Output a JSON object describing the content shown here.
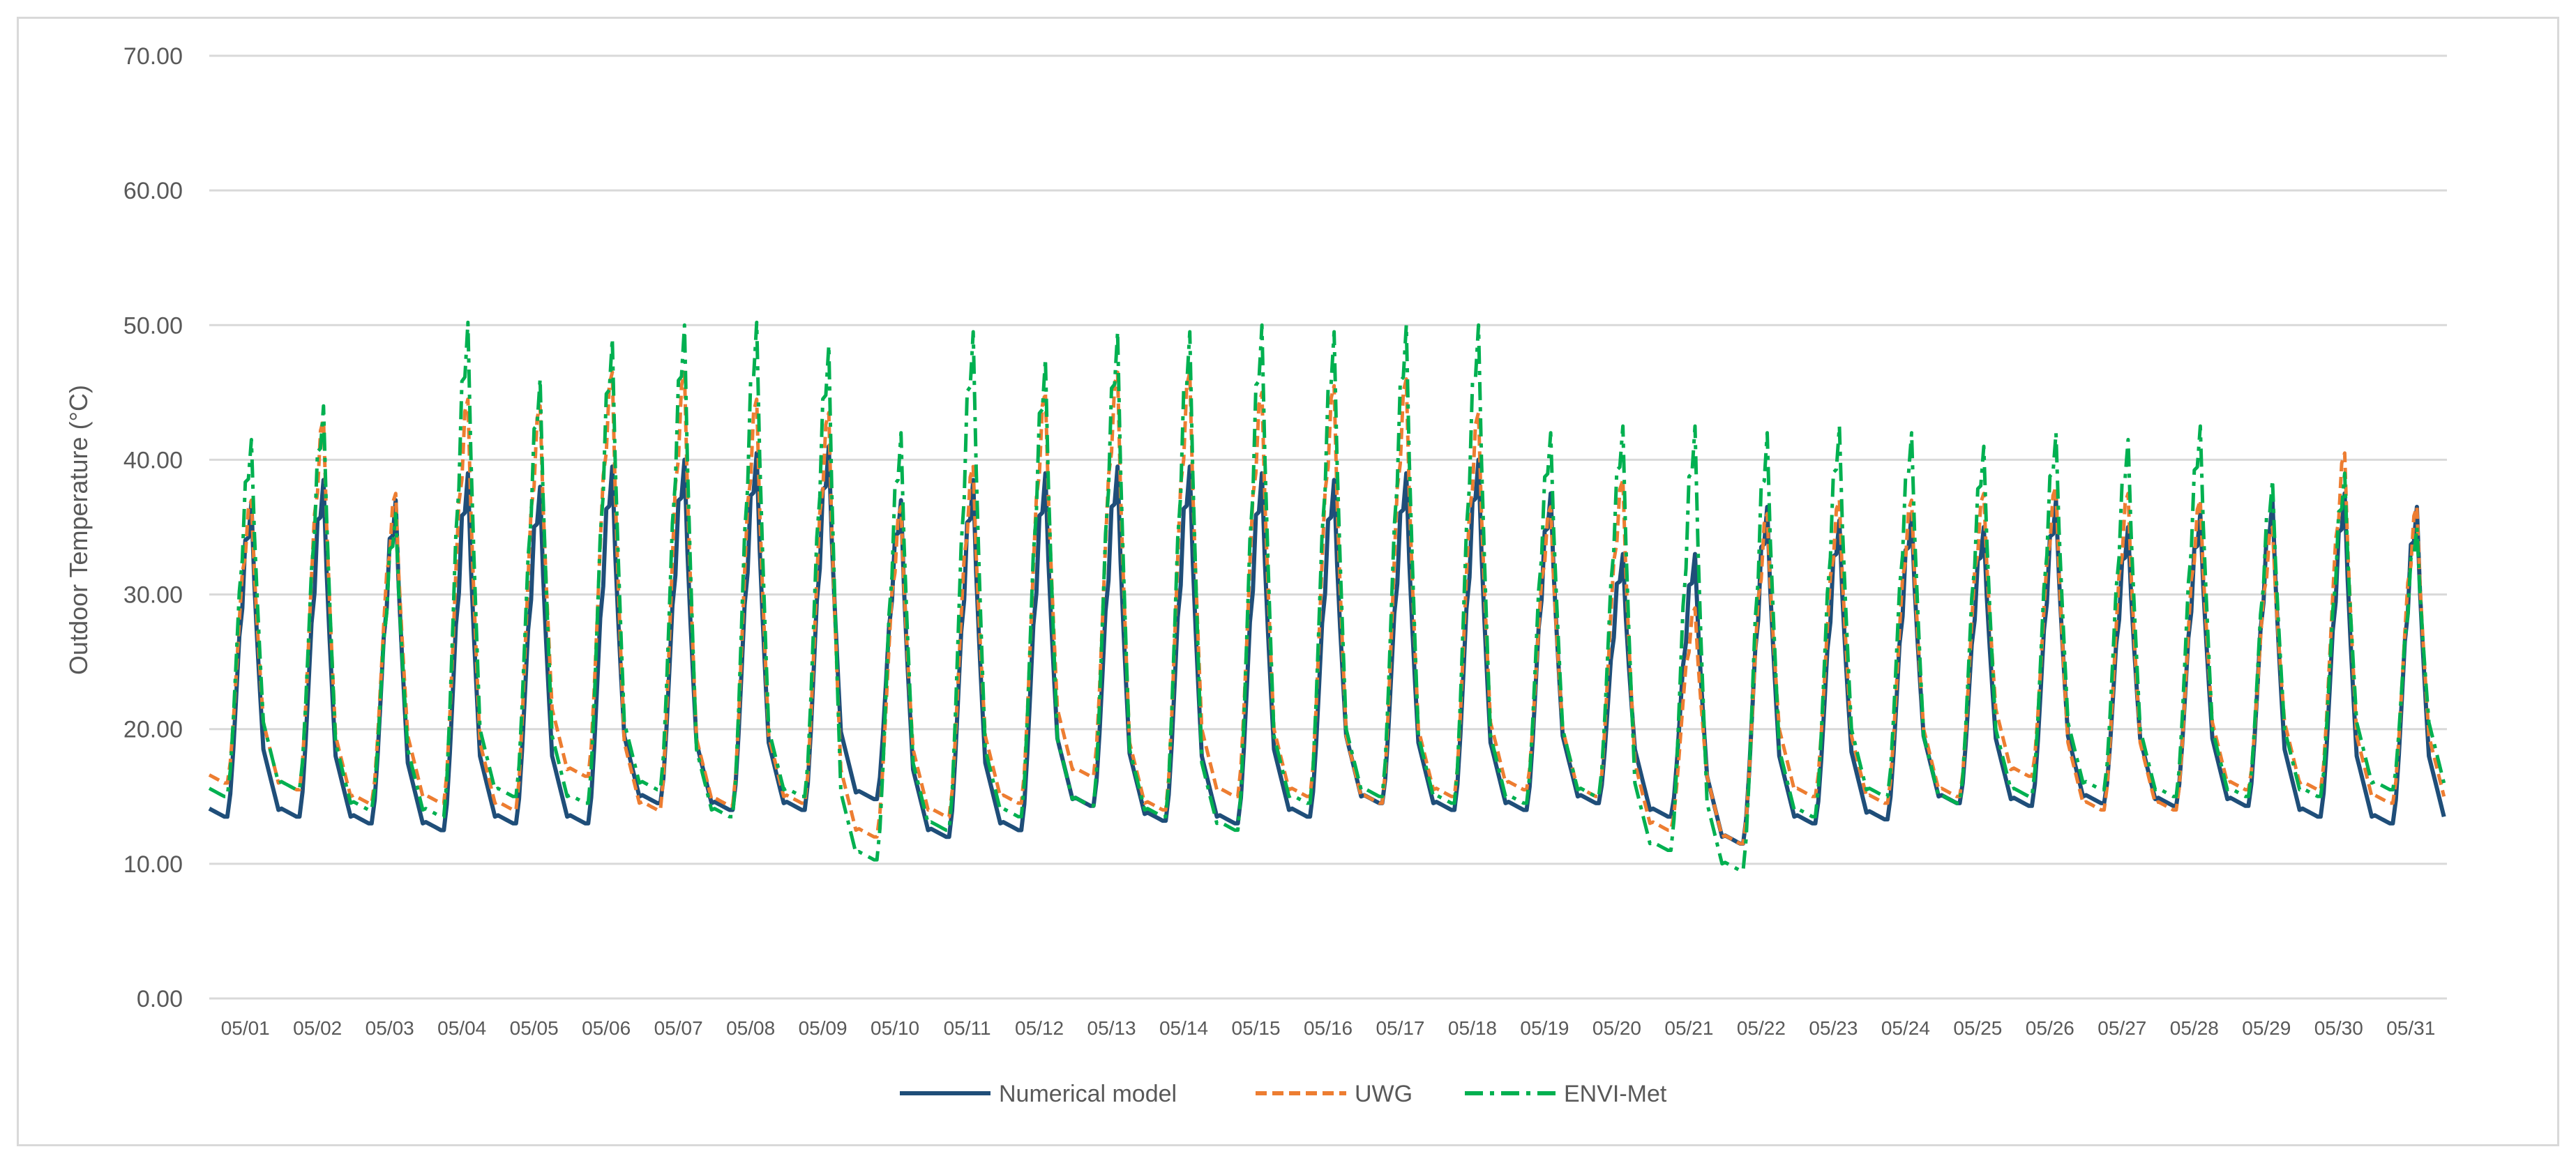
{
  "chart_data": {
    "type": "line",
    "title": "",
    "xlabel": "",
    "ylabel": "Outdoor Temperature (°C)",
    "ylim": [
      0,
      70
    ],
    "yticks": [
      "0.00",
      "10.00",
      "20.00",
      "30.00",
      "40.00",
      "50.00",
      "60.00",
      "70.00"
    ],
    "grid": true,
    "legend_position": "bottom",
    "categories": [
      "05/01",
      "05/02",
      "05/03",
      "05/04",
      "05/05",
      "05/06",
      "05/07",
      "05/08",
      "05/09",
      "05/10",
      "05/11",
      "05/12",
      "05/13",
      "05/14",
      "05/15",
      "05/16",
      "05/17",
      "05/18",
      "05/19",
      "05/20",
      "05/21",
      "05/22",
      "05/23",
      "05/24",
      "05/25",
      "05/26",
      "05/27",
      "05/28",
      "05/29",
      "05/30",
      "05/31"
    ],
    "x_resolution": "hourly (estimated daily min/max shown)",
    "series": [
      {
        "name": "Numerical model",
        "color": "#1f4e79",
        "dash": "solid",
        "daily_min": [
          13.5,
          13.5,
          13.0,
          12.5,
          13.0,
          13.0,
          14.5,
          14.0,
          14.0,
          14.8,
          12.0,
          12.5,
          14.3,
          13.2,
          13.0,
          13.5,
          14.5,
          14.0,
          14.0,
          14.5,
          13.5,
          11.5,
          13.0,
          13.3,
          14.5,
          14.3,
          14.5,
          14.3,
          14.3,
          13.5,
          13.0
        ],
        "daily_max": [
          36.8,
          38.5,
          37.0,
          39.0,
          38.0,
          39.5,
          40.0,
          40.5,
          41.0,
          37.0,
          38.5,
          39.0,
          39.5,
          39.5,
          39.0,
          38.5,
          39.0,
          40.0,
          37.5,
          33.0,
          33.0,
          36.5,
          35.5,
          36.0,
          35.0,
          37.0,
          35.0,
          36.0,
          37.0,
          37.5,
          36.5
        ]
      },
      {
        "name": "UWG",
        "color": "#ed7d31",
        "dash": "dashed",
        "daily_min": [
          16.0,
          15.5,
          14.5,
          14.5,
          14.0,
          16.5,
          14.0,
          14.3,
          14.5,
          12.0,
          13.5,
          14.5,
          16.5,
          14.0,
          15.0,
          15.0,
          14.5,
          15.0,
          15.5,
          15.0,
          12.5,
          11.5,
          15.0,
          14.5,
          15.0,
          16.5,
          14.0,
          14.0,
          15.5,
          15.5,
          14.5
        ],
        "daily_max": [
          37.0,
          43.0,
          37.5,
          44.5,
          44.0,
          46.5,
          46.5,
          44.5,
          43.5,
          36.5,
          39.5,
          45.0,
          46.5,
          46.5,
          45.0,
          45.5,
          46.0,
          43.5,
          36.5,
          38.5,
          29.0,
          36.0,
          37.0,
          37.0,
          37.5,
          38.0,
          37.5,
          37.0,
          35.0,
          40.5,
          36.5
        ]
      },
      {
        "name": "ENVI-Met",
        "color": "#00b050",
        "dash": "dashdot",
        "daily_min": [
          15.0,
          15.5,
          14.0,
          13.5,
          15.0,
          14.5,
          15.5,
          13.5,
          15.0,
          10.3,
          12.5,
          13.5,
          14.3,
          13.5,
          12.5,
          14.5,
          15.0,
          14.5,
          14.5,
          15.0,
          11.0,
          9.5,
          13.5,
          15.0,
          14.5,
          15.0,
          15.5,
          15.0,
          15.0,
          15.0,
          15.5
        ],
        "daily_max": [
          41.5,
          44.0,
          36.0,
          50.2,
          46.0,
          49.0,
          50.0,
          50.2,
          48.5,
          42.0,
          49.5,
          47.5,
          49.5,
          49.5,
          50.0,
          49.5,
          50.0,
          50.0,
          42.0,
          42.5,
          42.5,
          42.0,
          42.5,
          42.0,
          41.0,
          42.0,
          41.5,
          42.5,
          38.5,
          39.0,
          35.0
        ]
      }
    ]
  }
}
